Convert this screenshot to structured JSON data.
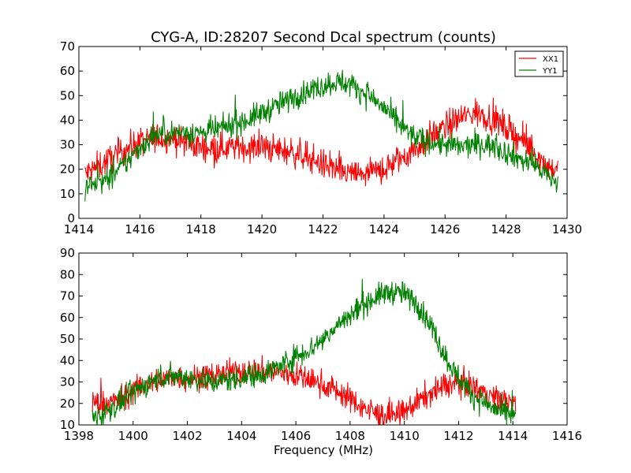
{
  "chart_data": [
    {
      "type": "line",
      "title": "CYG-A, ID:28207 Second Dcal spectrum (counts)",
      "xlabel": "",
      "ylabel": "",
      "xlim": [
        1414,
        1430
      ],
      "ylim": [
        0,
        70
      ],
      "xticks": [
        "1414",
        "1416",
        "1418",
        "1420",
        "1422",
        "1424",
        "1426",
        "1428",
        "1430"
      ],
      "yticks": [
        "0",
        "10",
        "20",
        "30",
        "40",
        "50",
        "60",
        "70"
      ],
      "grid": false,
      "legend": {
        "placement": "top-right",
        "entries": [
          {
            "name": "XX1",
            "color": "#ff0000"
          },
          {
            "name": "YY1",
            "color": "#008000"
          }
        ]
      },
      "series": [
        {
          "name": "XX1",
          "color": "#ff0000",
          "noise": 3,
          "points": [
            [
              1414.2,
              18
            ],
            [
              1414.5,
              20
            ],
            [
              1415,
              24
            ],
            [
              1415.5,
              28
            ],
            [
              1416,
              31
            ],
            [
              1416.5,
              33
            ],
            [
              1417,
              33
            ],
            [
              1417.5,
              31
            ],
            [
              1418,
              29
            ],
            [
              1418.5,
              29
            ],
            [
              1419,
              29
            ],
            [
              1419.5,
              29
            ],
            [
              1420,
              29
            ],
            [
              1420.5,
              28
            ],
            [
              1421,
              27
            ],
            [
              1421.5,
              25
            ],
            [
              1422,
              22
            ],
            [
              1422.5,
              19
            ],
            [
              1423,
              18
            ],
            [
              1423.5,
              18
            ],
            [
              1424,
              20
            ],
            [
              1424.5,
              24
            ],
            [
              1425,
              28
            ],
            [
              1425.5,
              33
            ],
            [
              1426,
              37
            ],
            [
              1426.5,
              41
            ],
            [
              1427,
              43
            ],
            [
              1427.5,
              41
            ],
            [
              1428,
              37
            ],
            [
              1428.5,
              32
            ],
            [
              1429,
              26
            ],
            [
              1429.4,
              21
            ],
            [
              1429.7,
              19
            ]
          ]
        },
        {
          "name": "YY1",
          "color": "#008000",
          "noise": 2.5,
          "points": [
            [
              1414.2,
              13
            ],
            [
              1414.5,
              14
            ],
            [
              1415,
              16
            ],
            [
              1415.5,
              22
            ],
            [
              1416,
              29
            ],
            [
              1416.5,
              34
            ],
            [
              1417,
              35
            ],
            [
              1417.5,
              35
            ],
            [
              1418,
              35
            ],
            [
              1418.5,
              36
            ],
            [
              1419,
              38
            ],
            [
              1419.5,
              40
            ],
            [
              1420,
              43
            ],
            [
              1420.5,
              46
            ],
            [
              1421,
              49
            ],
            [
              1421.5,
              52
            ],
            [
              1422,
              54
            ],
            [
              1422.5,
              56
            ],
            [
              1423,
              54
            ],
            [
              1423.5,
              50
            ],
            [
              1424,
              45
            ],
            [
              1424.5,
              38
            ],
            [
              1425,
              33
            ],
            [
              1425.5,
              31
            ],
            [
              1426,
              30
            ],
            [
              1426.5,
              29
            ],
            [
              1427,
              30
            ],
            [
              1427.5,
              30
            ],
            [
              1428,
              27
            ],
            [
              1428.5,
              24
            ],
            [
              1429,
              21
            ],
            [
              1429.4,
              17
            ],
            [
              1429.7,
              14
            ]
          ]
        }
      ]
    },
    {
      "type": "line",
      "title": "",
      "xlabel": "Frequency (MHz)",
      "ylabel": "",
      "xlim": [
        1398,
        1416
      ],
      "ylim": [
        10,
        90
      ],
      "xticks": [
        "1398",
        "1400",
        "1402",
        "1404",
        "1406",
        "1408",
        "1410",
        "1412",
        "1414",
        "1416"
      ],
      "yticks": [
        "10",
        "20",
        "30",
        "40",
        "50",
        "60",
        "70",
        "80",
        "90"
      ],
      "grid": false,
      "legend": null,
      "series": [
        {
          "name": "XX1",
          "color": "#ff0000",
          "noise": 3,
          "points": [
            [
              1398.5,
              20
            ],
            [
              1399,
              20
            ],
            [
              1399.5,
              22
            ],
            [
              1400,
              26
            ],
            [
              1400.5,
              29
            ],
            [
              1401,
              31
            ],
            [
              1401.5,
              32
            ],
            [
              1402,
              32
            ],
            [
              1402.5,
              32
            ],
            [
              1403,
              33
            ],
            [
              1403.5,
              34
            ],
            [
              1404,
              35
            ],
            [
              1404.5,
              35
            ],
            [
              1405,
              35
            ],
            [
              1405.5,
              34
            ],
            [
              1406,
              33
            ],
            [
              1406.5,
              31
            ],
            [
              1407,
              29
            ],
            [
              1407.5,
              26
            ],
            [
              1408,
              22
            ],
            [
              1408.5,
              18
            ],
            [
              1409,
              15
            ],
            [
              1409.5,
              14
            ],
            [
              1410,
              16
            ],
            [
              1410.5,
              21
            ],
            [
              1411,
              25
            ],
            [
              1411.5,
              28
            ],
            [
              1412,
              30
            ],
            [
              1412.5,
              28
            ],
            [
              1413,
              25
            ],
            [
              1413.5,
              22
            ],
            [
              1414.1,
              20
            ]
          ]
        },
        {
          "name": "YY1",
          "color": "#008000",
          "noise": 2.8,
          "points": [
            [
              1398.5,
              13
            ],
            [
              1399,
              16
            ],
            [
              1399.5,
              20
            ],
            [
              1400,
              25
            ],
            [
              1400.5,
              29
            ],
            [
              1401,
              32
            ],
            [
              1401.5,
              33
            ],
            [
              1402,
              32
            ],
            [
              1402.5,
              31
            ],
            [
              1403,
              30
            ],
            [
              1403.5,
              31
            ],
            [
              1404,
              32
            ],
            [
              1404.5,
              33
            ],
            [
              1405,
              35
            ],
            [
              1405.5,
              38
            ],
            [
              1406,
              42
            ],
            [
              1406.5,
              45
            ],
            [
              1407,
              50
            ],
            [
              1407.5,
              56
            ],
            [
              1408,
              61
            ],
            [
              1408.5,
              66
            ],
            [
              1409,
              70
            ],
            [
              1409.5,
              72
            ],
            [
              1410,
              71
            ],
            [
              1410.5,
              66
            ],
            [
              1411,
              56
            ],
            [
              1411.5,
              42
            ],
            [
              1412,
              32
            ],
            [
              1412.5,
              24
            ],
            [
              1413,
              20
            ],
            [
              1413.5,
              16
            ],
            [
              1414.1,
              14
            ]
          ]
        }
      ]
    }
  ]
}
